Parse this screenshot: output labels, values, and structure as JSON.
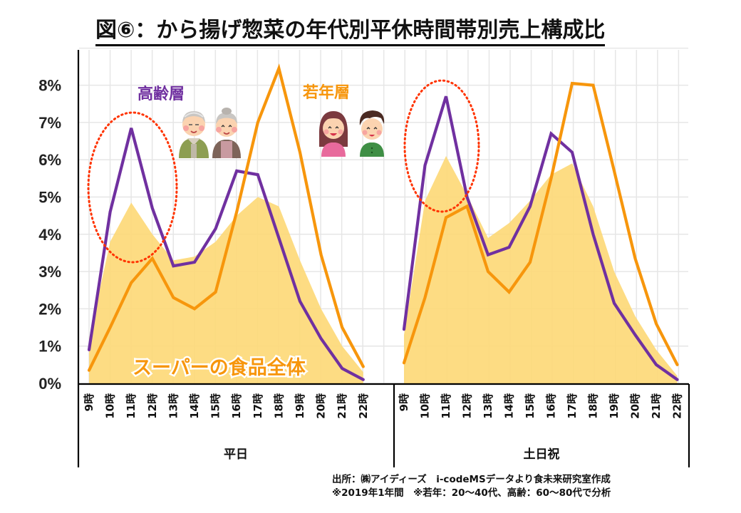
{
  "title": "図⑥：から揚げ惣菜の年代別平休時間帯別売上構成比",
  "chart_data": {
    "type": "line",
    "title": "図⑥：から揚げ惣菜の年代別平休時間帯別売上構成比",
    "xlabel": "",
    "ylabel": "",
    "ylim": [
      0,
      8
    ],
    "yticks": [
      "0%",
      "1%",
      "2%",
      "3%",
      "4%",
      "5%",
      "6%",
      "7%",
      "8%"
    ],
    "grid": true,
    "categories": [
      "9時",
      "10時",
      "11時",
      "12時",
      "13時",
      "14時",
      "15時",
      "16時",
      "17時",
      "18時",
      "19時",
      "20時",
      "21時",
      "22時"
    ],
    "groups": [
      {
        "label": "平日",
        "series": [
          {
            "name": "スーパーの食品全体",
            "kind": "area",
            "color": "#fdd978",
            "values": [
              1.2,
              3.8,
              4.85,
              4.0,
              3.3,
              3.4,
              3.8,
              4.5,
              5.0,
              4.75,
              3.3,
              2.0,
              1.0,
              0.3
            ]
          },
          {
            "name": "高齢層",
            "kind": "line",
            "color": "#7030a0",
            "values": [
              0.9,
              4.6,
              6.85,
              4.7,
              3.15,
              3.25,
              4.15,
              5.7,
              5.6,
              3.9,
              2.2,
              1.2,
              0.4,
              0.1
            ]
          },
          {
            "name": "若年層",
            "kind": "line",
            "color": "#f7960c",
            "values": [
              0.35,
              1.5,
              2.7,
              3.35,
              2.3,
              2.0,
              2.45,
              4.6,
              7.0,
              8.45,
              6.2,
              3.45,
              1.5,
              0.45
            ]
          }
        ]
      },
      {
        "label": "土日祝",
        "series": [
          {
            "name": "スーパーの食品全体",
            "kind": "area",
            "color": "#fdd978",
            "values": [
              1.3,
              4.9,
              6.1,
              5.05,
              3.9,
              4.3,
              4.9,
              5.6,
              5.9,
              4.75,
              3.0,
              1.8,
              0.9,
              0.2
            ]
          },
          {
            "name": "高齢層",
            "kind": "line",
            "color": "#7030a0",
            "values": [
              1.45,
              5.85,
              7.7,
              5.0,
              3.45,
              3.65,
              4.75,
              6.7,
              6.2,
              4.0,
              2.15,
              1.3,
              0.5,
              0.1
            ]
          },
          {
            "name": "若年層",
            "kind": "line",
            "color": "#f7960c",
            "values": [
              0.55,
              2.3,
              4.45,
              4.75,
              3.0,
              2.45,
              3.25,
              5.5,
              8.05,
              8.0,
              5.7,
              3.35,
              1.6,
              0.5
            ]
          }
        ]
      }
    ],
    "annotations": [
      {
        "text": "高齢層",
        "color": "#7030a0"
      },
      {
        "text": "若年層",
        "color": "#f7960c"
      },
      {
        "text": "スーパーの食品全体",
        "color": "#f7960c"
      },
      {
        "text": "dotted-ellipse around 高齢層 11時 peak (平日)",
        "color": "#ff3300"
      },
      {
        "text": "dotted-ellipse around 高齢層 11時 peak (土日祝)",
        "color": "#ff3300"
      }
    ]
  },
  "labels": {
    "elder": "高齢層",
    "young": "若年層",
    "total": "スーパーの食品全体",
    "weekday": "平日",
    "weekend": "土日祝"
  },
  "footer": {
    "line1": "出所：㈱アイディーズ　i-codeMSデータより食未来研究室作成",
    "line2": "※2019年1年間　※若年：20～40代、高齢：60～80代で分析"
  },
  "colors": {
    "elder": "#7030a0",
    "young": "#f7960c",
    "total_area": "#fdd978",
    "highlight": "#ff3300",
    "grid": "#e6e6e6"
  }
}
